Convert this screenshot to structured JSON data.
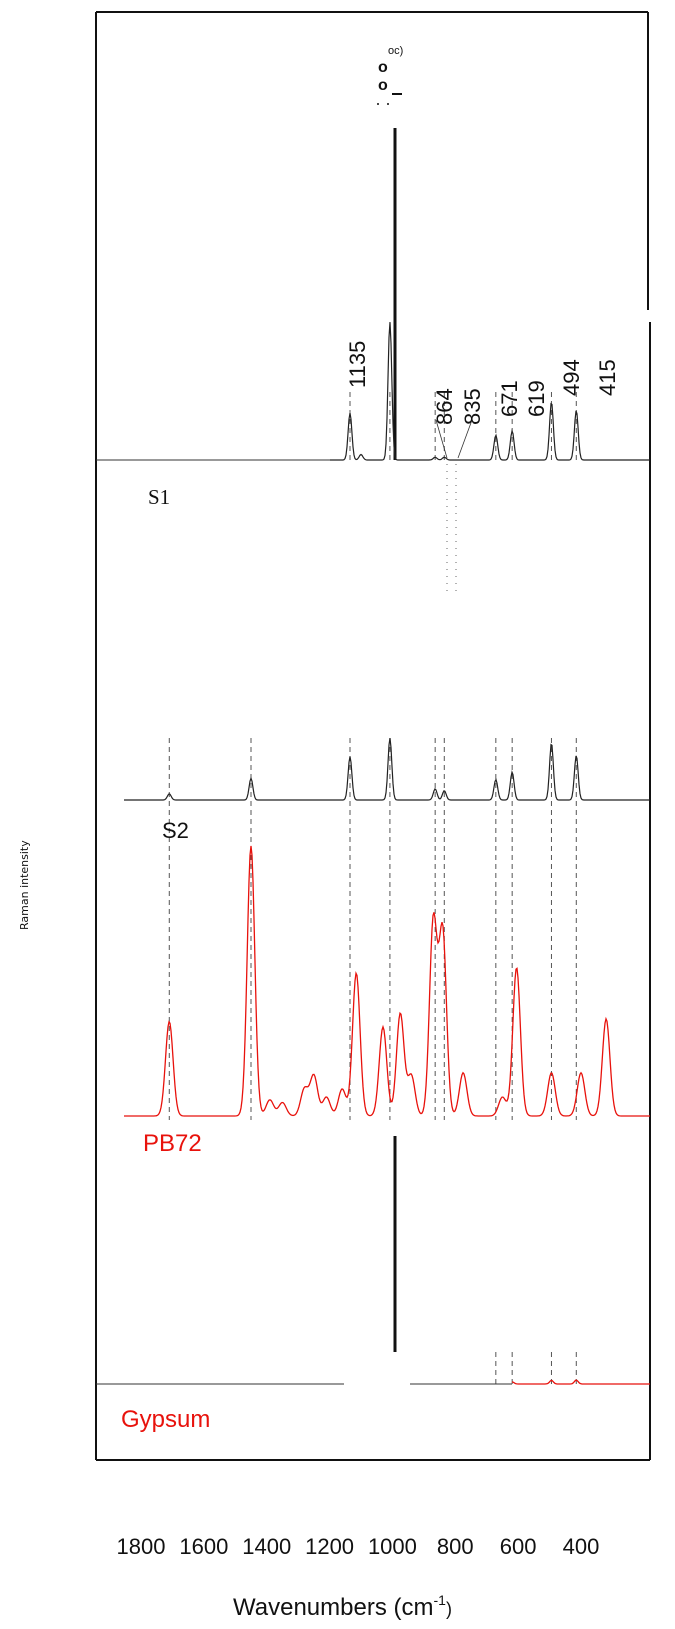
{
  "chart_data": {
    "type": "line",
    "title": "",
    "xlabel": "Wavenumbers (cm-1)",
    "ylabel": "Raman intensity",
    "xlim": [
      1800,
      200
    ],
    "x_tick_labels": [
      "1800",
      "1600",
      "1400",
      "1200",
      "1000",
      "800",
      "600",
      "400"
    ],
    "grid": false,
    "legend": "none",
    "peak_labels_top": [
      "1135",
      "864",
      "835",
      "671",
      "619",
      "494",
      "415"
    ],
    "peak_top_label_1008": "1008",
    "reference_lines": [
      1710,
      1450,
      1135,
      1008,
      864,
      835,
      671,
      619,
      494,
      415
    ],
    "series": [
      {
        "name": "S1",
        "color": "#222222",
        "peaks": [
          {
            "x": 1135,
            "h": 0.34
          },
          {
            "x": 1100,
            "h": 0.04
          },
          {
            "x": 1008,
            "h": 1.0
          },
          {
            "x": 864,
            "h": 0.02
          },
          {
            "x": 835,
            "h": 0.02
          },
          {
            "x": 671,
            "h": 0.18
          },
          {
            "x": 619,
            "h": 0.21
          },
          {
            "x": 494,
            "h": 0.42
          },
          {
            "x": 415,
            "h": 0.36
          }
        ]
      },
      {
        "name": "S2",
        "color": "#222222",
        "peaks": [
          {
            "x": 1710,
            "h": 0.1
          },
          {
            "x": 1450,
            "h": 0.35
          },
          {
            "x": 1135,
            "h": 0.7
          },
          {
            "x": 1008,
            "h": 1.0
          },
          {
            "x": 864,
            "h": 0.18
          },
          {
            "x": 835,
            "h": 0.15
          },
          {
            "x": 671,
            "h": 0.33
          },
          {
            "x": 619,
            "h": 0.45
          },
          {
            "x": 494,
            "h": 0.92
          },
          {
            "x": 415,
            "h": 0.72
          }
        ]
      },
      {
        "name": "PB72",
        "color": "#e8120c",
        "peaks": [
          {
            "x": 1710,
            "h": 0.35
          },
          {
            "x": 1450,
            "h": 1.0
          },
          {
            "x": 1390,
            "h": 0.06
          },
          {
            "x": 1350,
            "h": 0.05
          },
          {
            "x": 1280,
            "h": 0.1
          },
          {
            "x": 1250,
            "h": 0.15
          },
          {
            "x": 1210,
            "h": 0.07
          },
          {
            "x": 1160,
            "h": 0.1
          },
          {
            "x": 1115,
            "h": 0.53
          },
          {
            "x": 1030,
            "h": 0.33
          },
          {
            "x": 975,
            "h": 0.38
          },
          {
            "x": 940,
            "h": 0.15
          },
          {
            "x": 870,
            "h": 0.72
          },
          {
            "x": 840,
            "h": 0.68
          },
          {
            "x": 775,
            "h": 0.16
          },
          {
            "x": 650,
            "h": 0.07
          },
          {
            "x": 605,
            "h": 0.55
          },
          {
            "x": 494,
            "h": 0.16
          },
          {
            "x": 400,
            "h": 0.16
          },
          {
            "x": 320,
            "h": 0.36
          }
        ]
      },
      {
        "name": "Gypsum",
        "color": "#e8120c",
        "peaks": [
          {
            "x": 1008,
            "h": 1.0
          },
          {
            "x": 671,
            "h": 0.06
          },
          {
            "x": 619,
            "h": 0.07
          },
          {
            "x": 494,
            "h": 0.12
          },
          {
            "x": 415,
            "h": 0.13
          }
        ]
      }
    ]
  },
  "labels": {
    "s1": "S1",
    "s2": "S2",
    "pb72": "PB72",
    "gypsum": "Gypsum",
    "y_axis_text": "Raman intensity",
    "top_peak_text_a": "oc)",
    "top_peak_text_b": "o",
    "top_peak_text_c": "o",
    "x_axis_title_main": "Wavenumbers (cm",
    "x_axis_title_sup": "-1",
    "x_axis_title_close": ")"
  },
  "colors": {
    "black": "#222222",
    "red": "#e8120c",
    "dash": "#555555"
  }
}
